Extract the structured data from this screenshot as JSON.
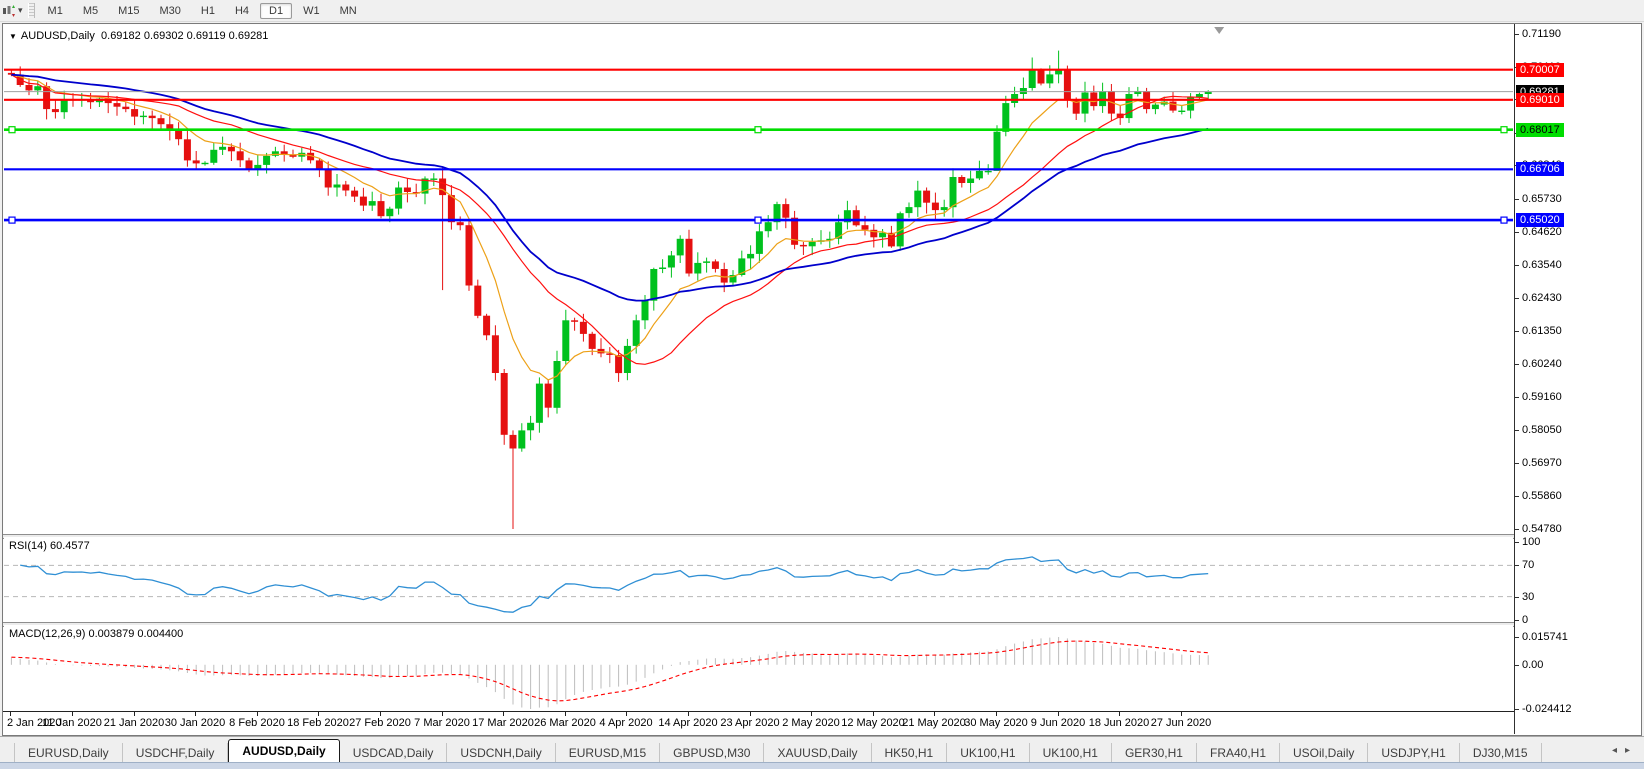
{
  "toolbar": {
    "timeframes": [
      "M1",
      "M5",
      "M15",
      "M30",
      "H1",
      "H4",
      "D1",
      "W1",
      "MN"
    ],
    "active_timeframe": "D1",
    "caret": "▾"
  },
  "chart": {
    "dropdown_glyph": "▼",
    "symbol_tf": "AUDUSD,Daily",
    "ohlc": "0.69182 0.69302 0.69119 0.69281"
  },
  "chart_data": {
    "type": "candlestick",
    "symbol": "AUDUSD",
    "timeframe": "Daily",
    "x_labels": [
      "2 Jan 2020",
      "11 Jan 2020",
      "21 Jan 2020",
      "30 Jan 2020",
      "8 Feb 2020",
      "18 Feb 2020",
      "27 Feb 2020",
      "7 Mar 2020",
      "17 Mar 2020",
      "26 Mar 2020",
      "4 Apr 2020",
      "14 Apr 2020",
      "23 Apr 2020",
      "2 May 2020",
      "12 May 2020",
      "21 May 2020",
      "30 May 2020",
      "9 Jun 2020",
      "18 Jun 2020",
      "27 Jun 2020"
    ],
    "bars_per_label": 7,
    "first_open": 0.699,
    "closes": [
      0.6984,
      0.695,
      0.6932,
      0.6946,
      0.687,
      0.686,
      0.6903,
      0.69,
      0.6903,
      0.6893,
      0.6905,
      0.689,
      0.6878,
      0.687,
      0.6845,
      0.6848,
      0.684,
      0.682,
      0.68,
      0.677,
      0.67,
      0.669,
      0.6692,
      0.6735,
      0.6745,
      0.673,
      0.67,
      0.667,
      0.6685,
      0.6715,
      0.673,
      0.672,
      0.6712,
      0.6725,
      0.67,
      0.6672,
      0.661,
      0.662,
      0.66,
      0.658,
      0.655,
      0.6565,
      0.6515,
      0.654,
      0.661,
      0.6595,
      0.659,
      0.664,
      0.664,
      0.6585,
      0.6495,
      0.6485,
      0.6285,
      0.6185,
      0.612,
      0.5995,
      0.579,
      0.5745,
      0.5805,
      0.583,
      0.596,
      0.588,
      0.6035,
      0.617,
      0.6165,
      0.6125,
      0.6075,
      0.606,
      0.6055,
      0.5995,
      0.6085,
      0.617,
      0.6235,
      0.634,
      0.6345,
      0.6385,
      0.644,
      0.6325,
      0.636,
      0.6365,
      0.634,
      0.6295,
      0.632,
      0.6375,
      0.639,
      0.6465,
      0.6495,
      0.6555,
      0.651,
      0.642,
      0.6415,
      0.643,
      0.6435,
      0.644,
      0.6495,
      0.6535,
      0.6485,
      0.647,
      0.6445,
      0.646,
      0.6415,
      0.6525,
      0.6545,
      0.66,
      0.656,
      0.6535,
      0.6545,
      0.6645,
      0.6625,
      0.664,
      0.6665,
      0.6665,
      0.6795,
      0.689,
      0.692,
      0.694,
      0.7,
      0.6955,
      0.6985,
      0.7,
      0.69,
      0.6855,
      0.6925,
      0.688,
      0.693,
      0.6855,
      0.684,
      0.692,
      0.693,
      0.687,
      0.6885,
      0.6895,
      0.6865,
      0.6865,
      0.691,
      0.692,
      0.6928
    ],
    "wick_overrides": {
      "49": {
        "low": 0.627
      },
      "57": {
        "low": 0.5478
      },
      "112": {
        "low": 0.667
      },
      "116": {
        "high": 0.7041
      },
      "119": {
        "high": 0.7064
      }
    },
    "candle_up_color": "#00c11e",
    "candle_down_color": "#e51010",
    "price_axis": {
      "max_tick": 0.7119,
      "min_tick": 0.5478,
      "ticks": [
        "0.71190",
        "0.70110",
        "0.69030",
        "0.67920",
        "0.66840",
        "0.65730",
        "0.64620",
        "0.63540",
        "0.62430",
        "0.61350",
        "0.60240",
        "0.59160",
        "0.58050",
        "0.56970",
        "0.55860",
        "0.54780"
      ]
    },
    "current_price": {
      "value": 0.69281,
      "label": "0.69281",
      "bg": "#000000",
      "fg": "#ffffff",
      "line_color": "#a0a0a0"
    },
    "levels": [
      {
        "label": "0.70007",
        "value": 0.70007,
        "color": "#ff0000",
        "fg": "#ffffff",
        "selected": false
      },
      {
        "label": "0.69010",
        "value": 0.6901,
        "color": "#ff0000",
        "fg": "#ffffff",
        "selected": false
      },
      {
        "label": "0.68017",
        "value": 0.68017,
        "color": "#00dd00",
        "fg": "#000000",
        "selected": true
      },
      {
        "label": "0.66706",
        "value": 0.66706,
        "color": "#0000ff",
        "fg": "#ffffff",
        "selected": false
      },
      {
        "label": "0.65020",
        "value": 0.6502,
        "color": "#0000ff",
        "fg": "#ffffff",
        "selected": true
      }
    ],
    "moving_averages": [
      {
        "name": "fast",
        "type": "ema",
        "period": 9,
        "color": "#eda118",
        "width": 1.2
      },
      {
        "name": "medium",
        "type": "sma",
        "period": 20,
        "color": "#ff1010",
        "width": 1.2
      },
      {
        "name": "slow",
        "type": "ema",
        "period": 35,
        "color": "#0000cc",
        "width": 1.8
      }
    ],
    "rsi": {
      "label": "RSI(14) 60.4577",
      "period": 14,
      "current": 60.4577,
      "axis_ticks": [
        "100",
        "70",
        "30",
        "0"
      ],
      "axis_tick_values": [
        100,
        70,
        30,
        0
      ],
      "guide_levels": [
        70,
        30
      ],
      "color": "#2f8fd4",
      "seed_gain": 0.003,
      "seed_loss": 0.001
    },
    "macd": {
      "label": "MACD(12,26,9) 0.003879 0.004400",
      "fast": 12,
      "slow": 26,
      "signal_period": 9,
      "macd_current": 0.003879,
      "signal_current": 0.0044,
      "axis_ticks": [
        "0.015741",
        "0.00",
        "-0.024412"
      ],
      "histogram_color": "#bdbdbd",
      "signal_color": "#ff0000",
      "seed_offset": 0.004
    }
  },
  "tabs": {
    "items": [
      "EURUSD,Daily",
      "USDCHF,Daily",
      "AUDUSD,Daily",
      "USDCAD,Daily",
      "USDCNH,Daily",
      "EURUSD,M15",
      "GBPUSD,M30",
      "XAUUSD,Daily",
      "HK50,H1",
      "UK100,H1",
      "UK100,H1",
      "GER30,H1",
      "FRA40,H1",
      "USOil,Daily",
      "USDJPY,H1",
      "DJ30,M15"
    ],
    "active_index": 2,
    "scroll_left": "◂",
    "scroll_right": "▸"
  }
}
